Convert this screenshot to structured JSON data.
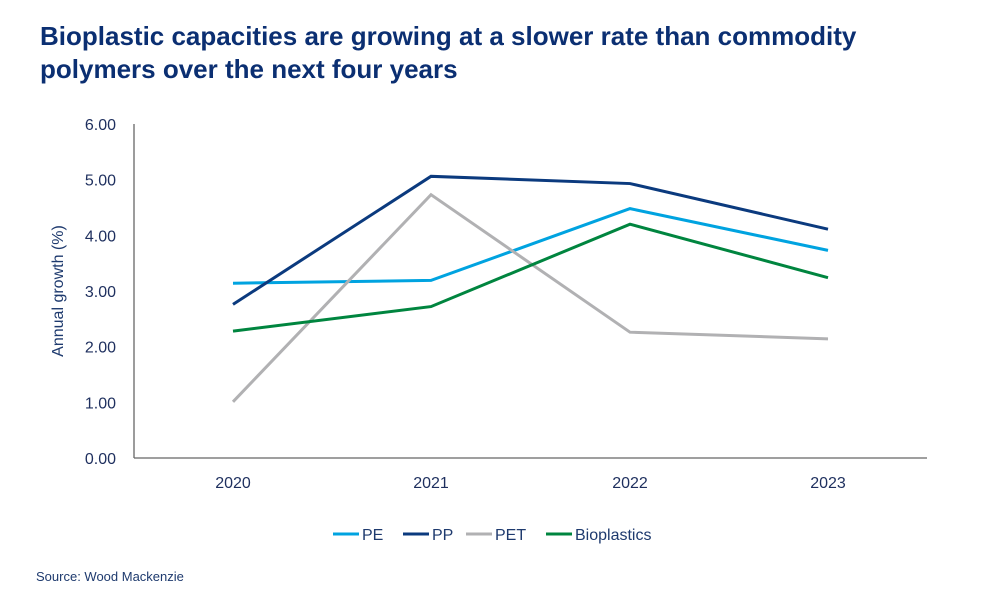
{
  "chart_data": {
    "type": "line",
    "title": "Bioplastic capacities are growing at a slower rate than commodity polymers over the next four years",
    "xlabel": "",
    "ylabel": "Annual growth (%)",
    "categories": [
      "2020",
      "2021",
      "2022",
      "2023"
    ],
    "ylim": [
      0,
      6
    ],
    "yticks": [
      "0.00",
      "1.00",
      "2.00",
      "3.00",
      "4.00",
      "5.00",
      "6.00"
    ],
    "grid": false,
    "legend": "bottom",
    "series": [
      {
        "name": "PE",
        "color": "#00a3e0",
        "values": [
          3.14,
          3.19,
          4.48,
          3.73
        ]
      },
      {
        "name": "PP",
        "color": "#0b3a7e",
        "values": [
          2.76,
          5.06,
          4.93,
          4.11
        ]
      },
      {
        "name": "PET",
        "color": "#b1b1b3",
        "values": [
          1.01,
          4.73,
          2.26,
          2.14
        ]
      },
      {
        "name": "Bioplastics",
        "color": "#00853f",
        "values": [
          2.28,
          2.72,
          4.2,
          3.24
        ]
      }
    ],
    "source": "Source: Wood Mackenzie"
  }
}
